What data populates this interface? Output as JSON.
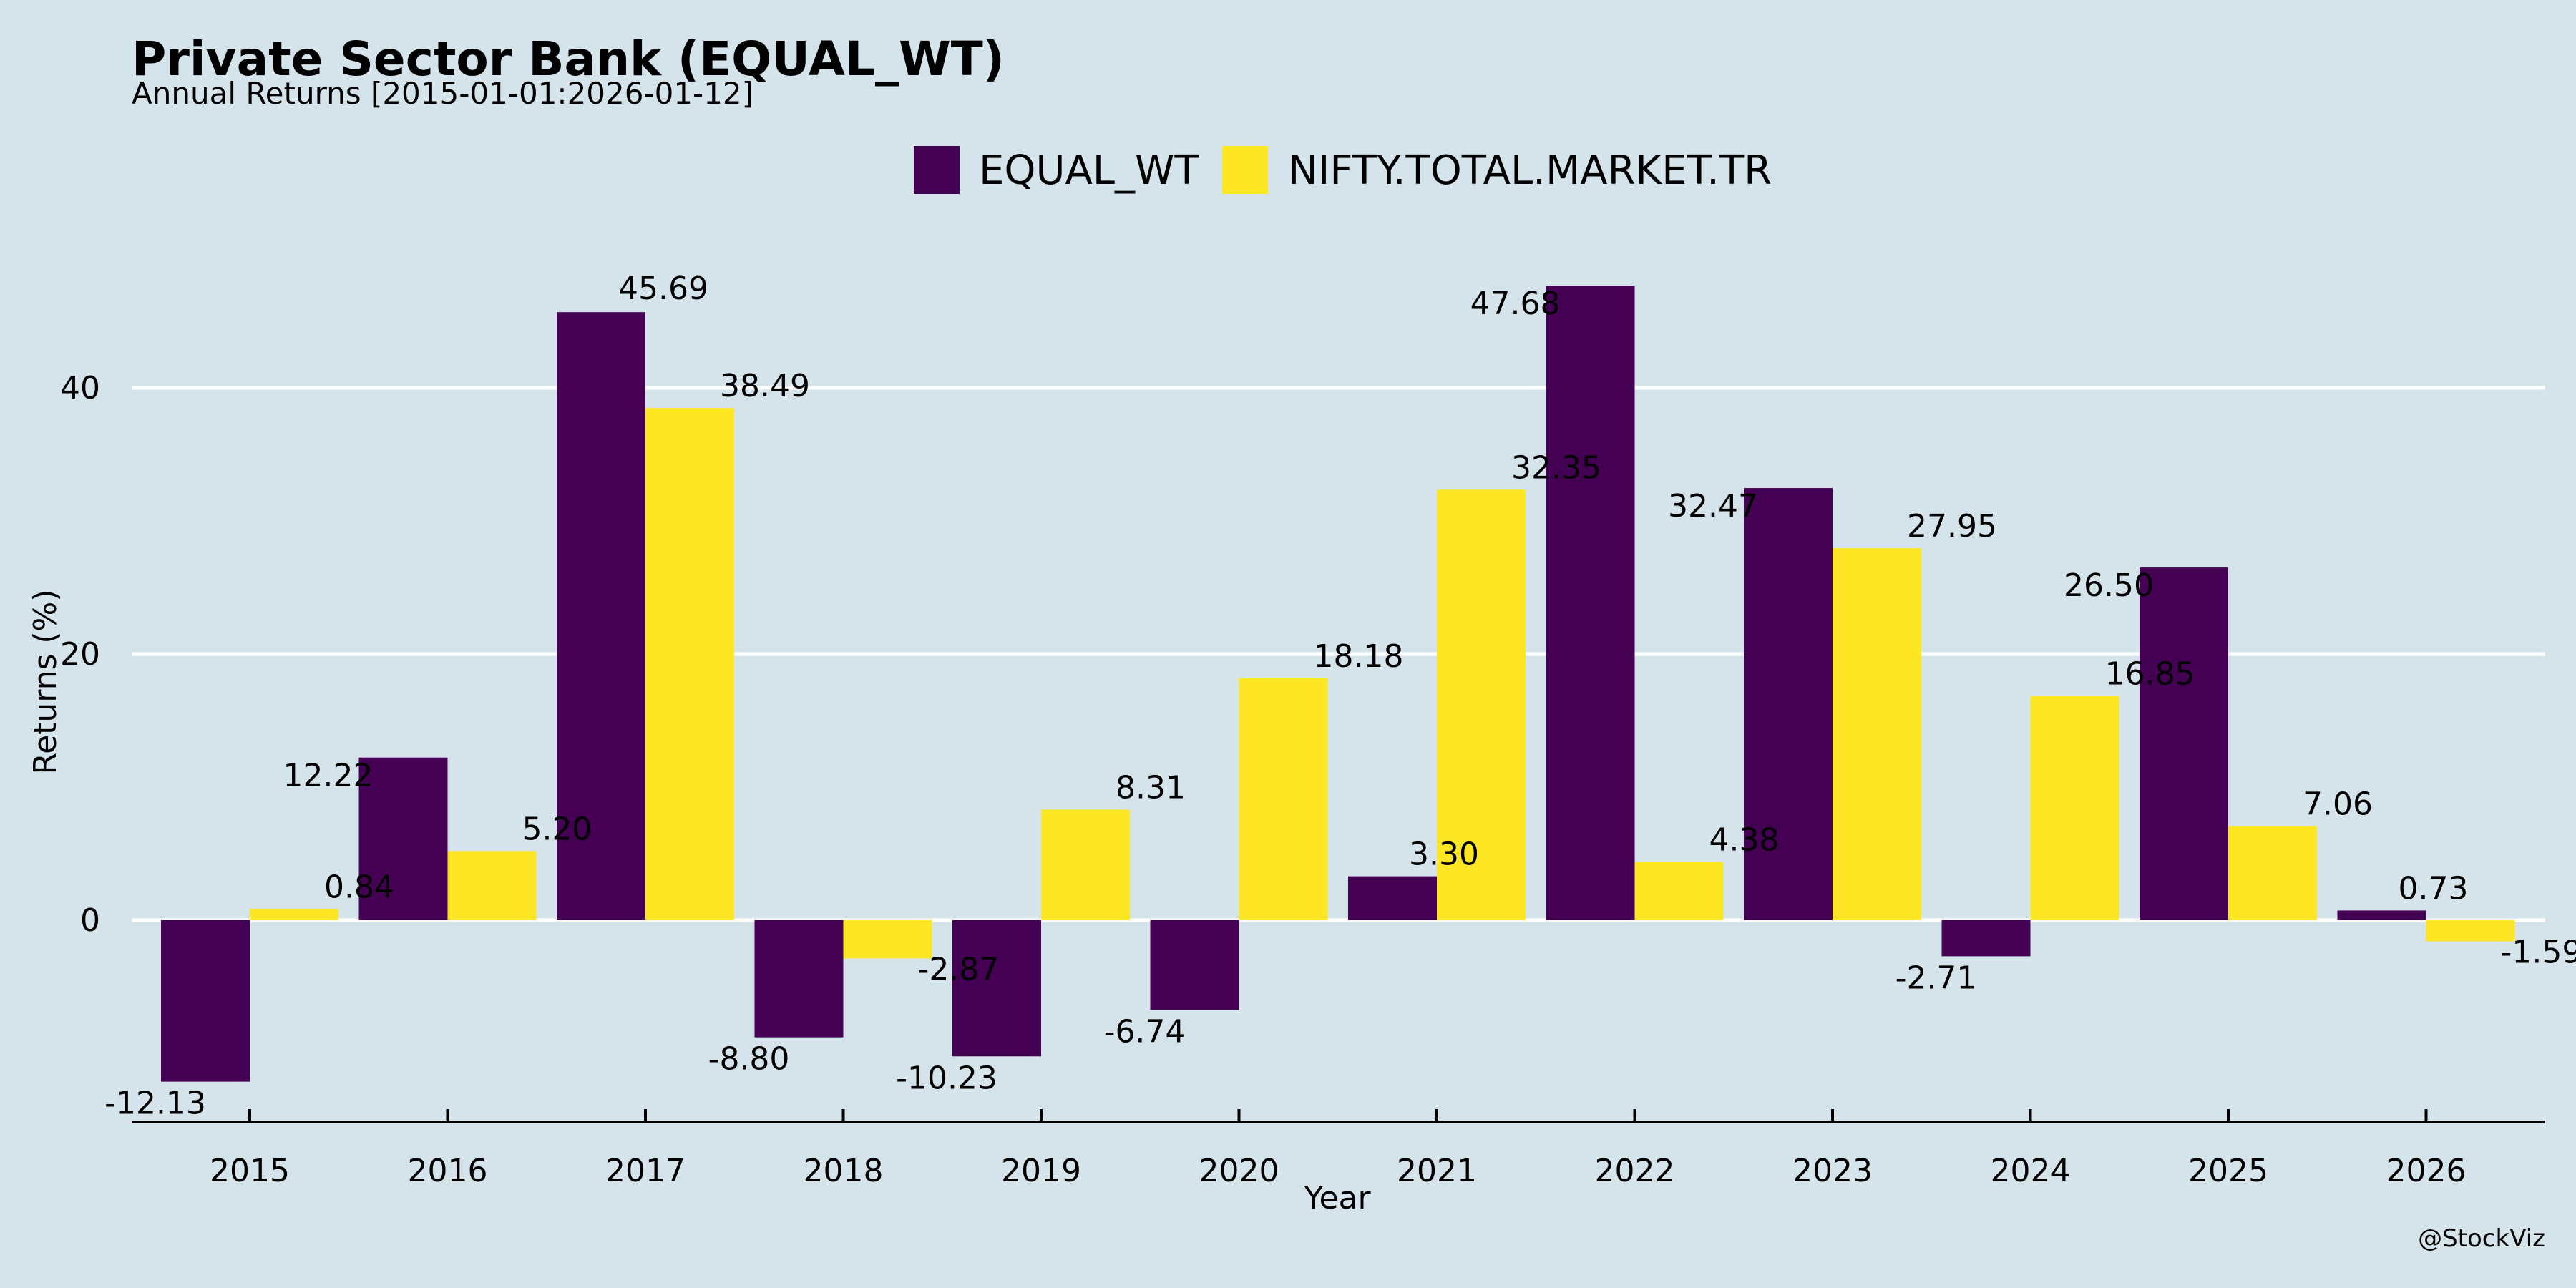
{
  "chart_data": {
    "type": "bar",
    "title": "Private Sector Bank (EQUAL_WT)",
    "subtitle": "Annual Returns [2015-01-01:2026-01-12]",
    "xlabel": "Year",
    "ylabel": "Returns (%)",
    "categories": [
      "2015",
      "2016",
      "2017",
      "2018",
      "2019",
      "2020",
      "2021",
      "2022",
      "2023",
      "2024",
      "2025",
      "2026"
    ],
    "series": [
      {
        "name": "EQUAL_WT",
        "color": "#440154",
        "values": [
          -12.13,
          12.22,
          45.69,
          -8.8,
          -10.23,
          -6.74,
          3.3,
          47.68,
          32.47,
          -2.71,
          26.5,
          0.73
        ],
        "labels": [
          "-12.13",
          "12.22",
          "45.69",
          "-8.80",
          "-10.23",
          "-6.74",
          "3.30",
          "47.68",
          "32.47",
          "-2.71",
          "26.50",
          "0.73"
        ]
      },
      {
        "name": "NIFTY.TOTAL.MARKET.TR",
        "color": "#fde725",
        "values": [
          0.84,
          5.2,
          38.49,
          -2.87,
          8.31,
          18.18,
          32.35,
          4.38,
          27.95,
          16.85,
          7.06,
          -1.59
        ],
        "labels": [
          "0.84",
          "5.20",
          "38.49",
          "-2.87",
          "8.31",
          "18.18",
          "32.35",
          "4.38",
          "27.95",
          "16.85",
          "7.06",
          "-1.59"
        ]
      }
    ],
    "yticks": [
      0,
      20,
      40
    ],
    "ytick_labels": [
      "0",
      "20",
      "40"
    ],
    "ylim": [
      -15.1,
      50
    ],
    "grid": "horizontal",
    "legend": "top-center",
    "credit": "@StockViz",
    "background": "#d5e4eb"
  }
}
